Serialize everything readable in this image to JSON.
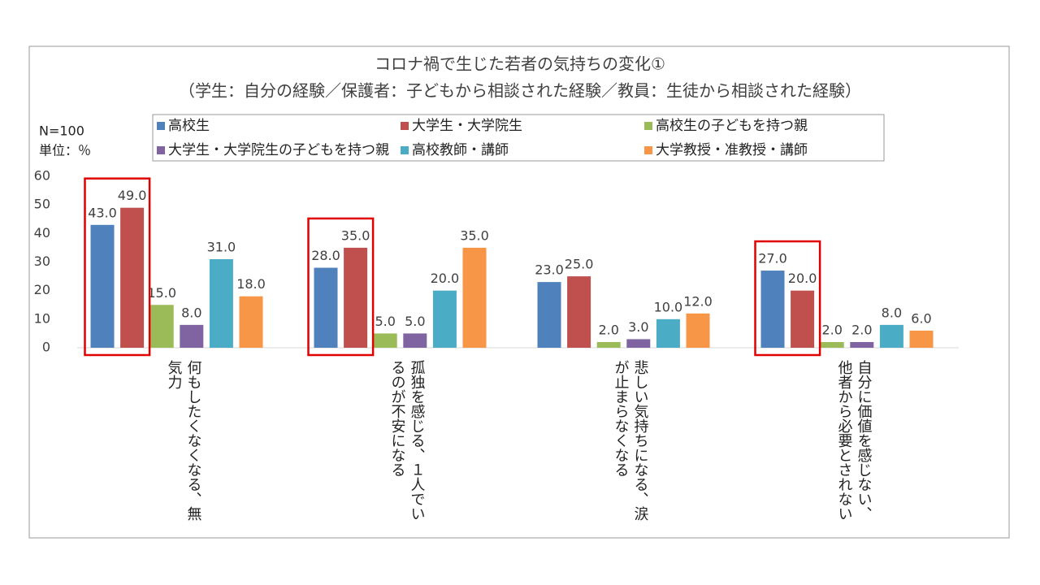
{
  "chart_data": {
    "type": "bar",
    "title": "コロナ禍で生じた若者の気持ちの変化①",
    "subtitle": "（学生：自分の経験／保護者：子どもから相談された経験／教員：生徒から相談された経験）",
    "annotations": [
      "N=100",
      "単位：％"
    ],
    "categories": [
      "何もしたくなくなる、無気力",
      "孤独を感じる、１人でいるのが不安になる",
      "悲しい気持ちになる、涙が止まらなくなる",
      "自分に価値を感じない、他者から必要とされない"
    ],
    "series": [
      {
        "name": "高校生",
        "color": "#4f81bd",
        "values": [
          43,
          28,
          23,
          27
        ],
        "value_labels": [
          "43.0",
          "28.0",
          "23.0",
          "27.0"
        ]
      },
      {
        "name": "大学生・大学院生",
        "color": "#c0504d",
        "values": [
          49,
          35,
          25,
          20
        ],
        "value_labels": [
          "49.0",
          "35.0",
          "25.0",
          "20.0"
        ]
      },
      {
        "name": "高校生の子どもを持つ親",
        "color": "#9bbb59",
        "values": [
          15,
          5,
          2,
          2
        ],
        "value_labels": [
          "15.0",
          "5.0",
          "2.0",
          "2.0"
        ]
      },
      {
        "name": "大学生・大学院生の子どもを持つ親",
        "color": "#8064a2",
        "values": [
          8,
          5,
          3,
          2
        ],
        "value_labels": [
          "8.0",
          "5.0",
          "3.0",
          "2.0"
        ]
      },
      {
        "name": "高校教師・講師",
        "color": "#4bacc6",
        "values": [
          31,
          20,
          10,
          8
        ],
        "value_labels": [
          "31.0",
          "20.0",
          "10.0",
          "8.0"
        ]
      },
      {
        "name": "大学教授・准教授・講師",
        "color": "#f79646",
        "values": [
          18,
          35,
          12,
          6
        ],
        "value_labels": [
          "18.0",
          "35.0",
          "12.0",
          "6.0"
        ]
      }
    ],
    "ylim": [
      0,
      60
    ],
    "yticks": [
      0,
      10,
      20,
      30,
      40,
      50,
      60
    ],
    "grid": false,
    "legend": "top",
    "highlight": [
      0,
      1,
      3
    ],
    "highlight_color": "#e00000"
  }
}
